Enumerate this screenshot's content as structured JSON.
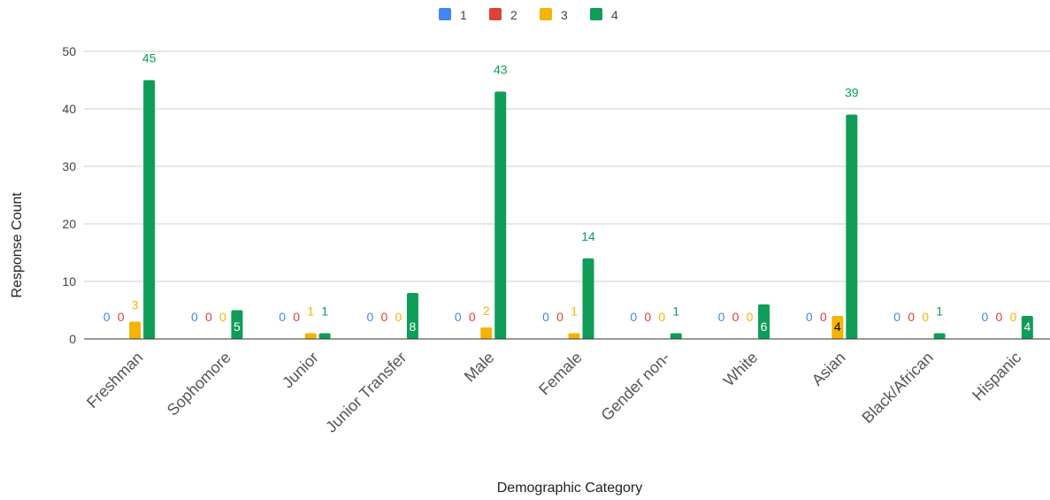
{
  "chart_data": {
    "type": "bar",
    "xlabel": "Demographic Category",
    "ylabel": "Response Count",
    "ylim": [
      0,
      50
    ],
    "yticks": [
      0,
      10,
      20,
      30,
      40,
      50
    ],
    "grid": true,
    "legend_position": "top",
    "categories": [
      "Freshman",
      "Sophomore",
      "Junior",
      "Junior Transfer",
      "Male",
      "Female",
      "Gender non-",
      "White",
      "Asian",
      "Black/African",
      "Hispanic"
    ],
    "series": [
      {
        "name": "1",
        "color": "#4285f4",
        "values": [
          0,
          0,
          0,
          0,
          0,
          0,
          0,
          0,
          0,
          0,
          0
        ]
      },
      {
        "name": "2",
        "color": "#db4437",
        "values": [
          0,
          0,
          0,
          0,
          0,
          0,
          0,
          0,
          0,
          0,
          0
        ]
      },
      {
        "name": "3",
        "color": "#f4b400",
        "values": [
          3,
          0,
          1,
          0,
          2,
          1,
          0,
          0,
          4,
          0,
          0
        ]
      },
      {
        "name": "4",
        "color": "#0f9d58",
        "values": [
          45,
          5,
          1,
          8,
          43,
          14,
          1,
          6,
          39,
          1,
          4
        ]
      }
    ]
  }
}
